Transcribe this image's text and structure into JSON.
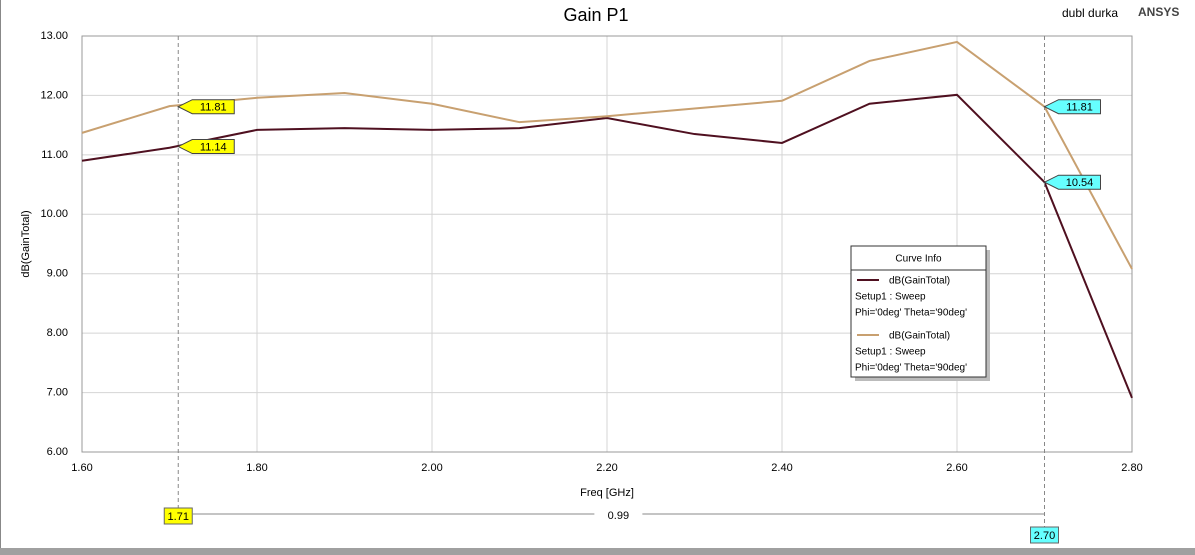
{
  "chart_data": {
    "type": "line",
    "title": "Gain P1",
    "subtitle": "dubl durka",
    "brand": "ANSYS",
    "xlabel": "Freq [GHz]",
    "ylabel": "dB(GainTotal)",
    "x": [
      1.6,
      1.7,
      1.8,
      1.9,
      2.0,
      2.1,
      2.2,
      2.3,
      2.4,
      2.5,
      2.6,
      2.7,
      2.8
    ],
    "series": [
      {
        "name": "dB(GainTotal)",
        "setup": "Setup1 : Sweep",
        "variation": "Phi='0deg' Theta='90deg'",
        "color": "#4f1020",
        "values": [
          10.9,
          11.12,
          11.42,
          11.45,
          11.42,
          11.45,
          11.62,
          11.35,
          11.2,
          11.86,
          12.01,
          10.54,
          6.91
        ]
      },
      {
        "name": "dB(GainTotal)",
        "setup": "Setup1 : Sweep",
        "variation": "Phi='0deg' Theta='90deg'",
        "color": "#c8a070",
        "values": [
          11.37,
          11.82,
          11.96,
          12.04,
          11.86,
          11.55,
          11.65,
          11.78,
          11.91,
          12.58,
          12.9,
          11.81,
          9.08
        ]
      }
    ],
    "xlim": [
      1.6,
      2.8
    ],
    "ylim": [
      6,
      13
    ],
    "xticks": [
      {
        "value": 1.6,
        "label": "1.60"
      },
      {
        "value": 1.8,
        "label": "1.80"
      },
      {
        "value": 2.0,
        "label": "2.00"
      },
      {
        "value": 2.2,
        "label": "2.20"
      },
      {
        "value": 2.4,
        "label": "2.40"
      },
      {
        "value": 2.6,
        "label": "2.60"
      },
      {
        "value": 2.8,
        "label": "2.80"
      }
    ],
    "yticks": [
      {
        "value": 6,
        "label": "6.00"
      },
      {
        "value": 7,
        "label": "7.00"
      },
      {
        "value": 8,
        "label": "8.00"
      },
      {
        "value": 9,
        "label": "9.00"
      },
      {
        "value": 10,
        "label": "10.00"
      },
      {
        "value": 11,
        "label": "11.00"
      },
      {
        "value": 12,
        "label": "12.00"
      },
      {
        "value": 13,
        "label": "13.00"
      }
    ],
    "grid": true,
    "legend_title": "Curve Info",
    "markers": [
      {
        "x": {
          "value": 1.71,
          "label": "1.71"
        },
        "color": "#ffff00",
        "values": [
          11.14,
          11.81
        ]
      },
      {
        "x": {
          "value": 2.7,
          "label": "2.70"
        },
        "color": "#66ffff",
        "values": [
          10.54,
          11.81
        ]
      }
    ],
    "marker_delta": 0.99
  }
}
